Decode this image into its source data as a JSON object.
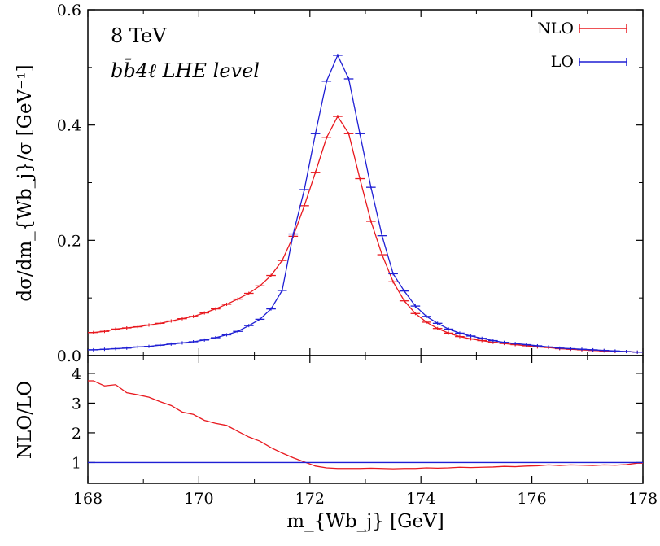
{
  "chart_data": [
    {
      "panel": "main",
      "type": "line",
      "annotations": [
        "8 TeV",
        "bb̄4ℓ LHE level"
      ],
      "xlabel": "m_{Wb_j} [GeV]",
      "ylabel": "dσ/dm_{Wb_j}/σ [GeV⁻¹]",
      "xlim": [
        168,
        178
      ],
      "ylim": [
        0,
        0.6
      ],
      "y_ticks": [
        "0.0",
        "0.2",
        "0.4",
        "0.6"
      ],
      "legend_position": "top-right",
      "grid": false,
      "error_bars": true,
      "x": [
        168.1,
        168.3,
        168.5,
        168.7,
        168.9,
        169.1,
        169.3,
        169.5,
        169.7,
        169.9,
        170.1,
        170.3,
        170.5,
        170.7,
        170.9,
        171.1,
        171.3,
        171.5,
        171.7,
        171.9,
        172.1,
        172.3,
        172.5,
        172.7,
        172.9,
        173.1,
        173.3,
        173.5,
        173.7,
        173.9,
        174.1,
        174.3,
        174.5,
        174.7,
        174.9,
        175.1,
        175.3,
        175.5,
        175.7,
        175.9,
        176.1,
        176.3,
        176.5,
        176.7,
        176.9,
        177.1,
        177.3,
        177.5,
        177.7,
        177.9
      ],
      "series": [
        {
          "name": "NLO",
          "color": "#e8191f",
          "values": [
            0.04,
            0.042,
            0.046,
            0.048,
            0.05,
            0.053,
            0.056,
            0.06,
            0.064,
            0.068,
            0.074,
            0.081,
            0.089,
            0.098,
            0.108,
            0.121,
            0.139,
            0.165,
            0.207,
            0.26,
            0.318,
            0.378,
            0.415,
            0.385,
            0.307,
            0.233,
            0.175,
            0.128,
            0.095,
            0.073,
            0.058,
            0.047,
            0.039,
            0.033,
            0.029,
            0.026,
            0.023,
            0.021,
            0.019,
            0.017,
            0.015,
            0.014,
            0.012,
            0.011,
            0.01,
            0.009,
            0.008,
            0.007,
            0.007,
            0.006
          ]
        },
        {
          "name": "LO",
          "color": "#1f1fd4",
          "values": [
            0.01,
            0.011,
            0.012,
            0.013,
            0.015,
            0.016,
            0.018,
            0.02,
            0.022,
            0.024,
            0.027,
            0.031,
            0.036,
            0.042,
            0.052,
            0.063,
            0.081,
            0.113,
            0.211,
            0.288,
            0.385,
            0.476,
            0.521,
            0.48,
            0.385,
            0.292,
            0.208,
            0.142,
            0.112,
            0.086,
            0.068,
            0.056,
            0.046,
            0.039,
            0.034,
            0.03,
            0.026,
            0.023,
            0.021,
            0.019,
            0.017,
            0.015,
            0.013,
            0.012,
            0.011,
            0.01,
            0.009,
            0.008,
            0.007,
            0.006
          ]
        }
      ]
    },
    {
      "panel": "ratio",
      "type": "line",
      "xlabel": "m_{Wb_j} [GeV]",
      "ylabel": "NLO/LO",
      "xlim": [
        168,
        178
      ],
      "ylim": [
        0.3,
        4.6
      ],
      "y_ticks": [
        "1",
        "2",
        "3",
        "4"
      ],
      "x_ticks": [
        "168",
        "170",
        "172",
        "174",
        "176",
        "178"
      ],
      "grid": false,
      "x": [
        168.1,
        168.3,
        168.5,
        168.7,
        168.9,
        169.1,
        169.3,
        169.5,
        169.7,
        169.9,
        170.1,
        170.3,
        170.5,
        170.7,
        170.9,
        171.1,
        171.3,
        171.5,
        171.7,
        171.9,
        172.1,
        172.3,
        172.5,
        172.7,
        172.9,
        173.1,
        173.3,
        173.5,
        173.7,
        173.9,
        174.1,
        174.3,
        174.5,
        174.7,
        174.9,
        175.1,
        175.3,
        175.5,
        175.7,
        175.9,
        176.1,
        176.3,
        176.5,
        176.7,
        176.9,
        177.1,
        177.3,
        177.5,
        177.7,
        177.9
      ],
      "series": [
        {
          "name": "NLO/LO",
          "color": "#e8191f",
          "values": [
            3.75,
            3.58,
            3.62,
            3.35,
            3.28,
            3.2,
            3.05,
            2.92,
            2.7,
            2.62,
            2.42,
            2.32,
            2.25,
            2.05,
            1.86,
            1.72,
            1.5,
            1.32,
            1.16,
            1.02,
            0.88,
            0.82,
            0.8,
            0.8,
            0.8,
            0.81,
            0.8,
            0.79,
            0.8,
            0.8,
            0.82,
            0.81,
            0.82,
            0.84,
            0.83,
            0.84,
            0.85,
            0.87,
            0.86,
            0.88,
            0.89,
            0.92,
            0.9,
            0.92,
            0.91,
            0.9,
            0.92,
            0.91,
            0.93,
            0.98
          ]
        },
        {
          "name": "LO/LO",
          "color": "#1f1fd4",
          "values": [
            1,
            1,
            1,
            1,
            1,
            1,
            1,
            1,
            1,
            1,
            1,
            1,
            1,
            1,
            1,
            1,
            1,
            1,
            1,
            1,
            1,
            1,
            1,
            1,
            1,
            1,
            1,
            1,
            1,
            1,
            1,
            1,
            1,
            1,
            1,
            1,
            1,
            1,
            1,
            1,
            1,
            1,
            1,
            1,
            1,
            1,
            1,
            1,
            1,
            1
          ]
        }
      ]
    }
  ]
}
